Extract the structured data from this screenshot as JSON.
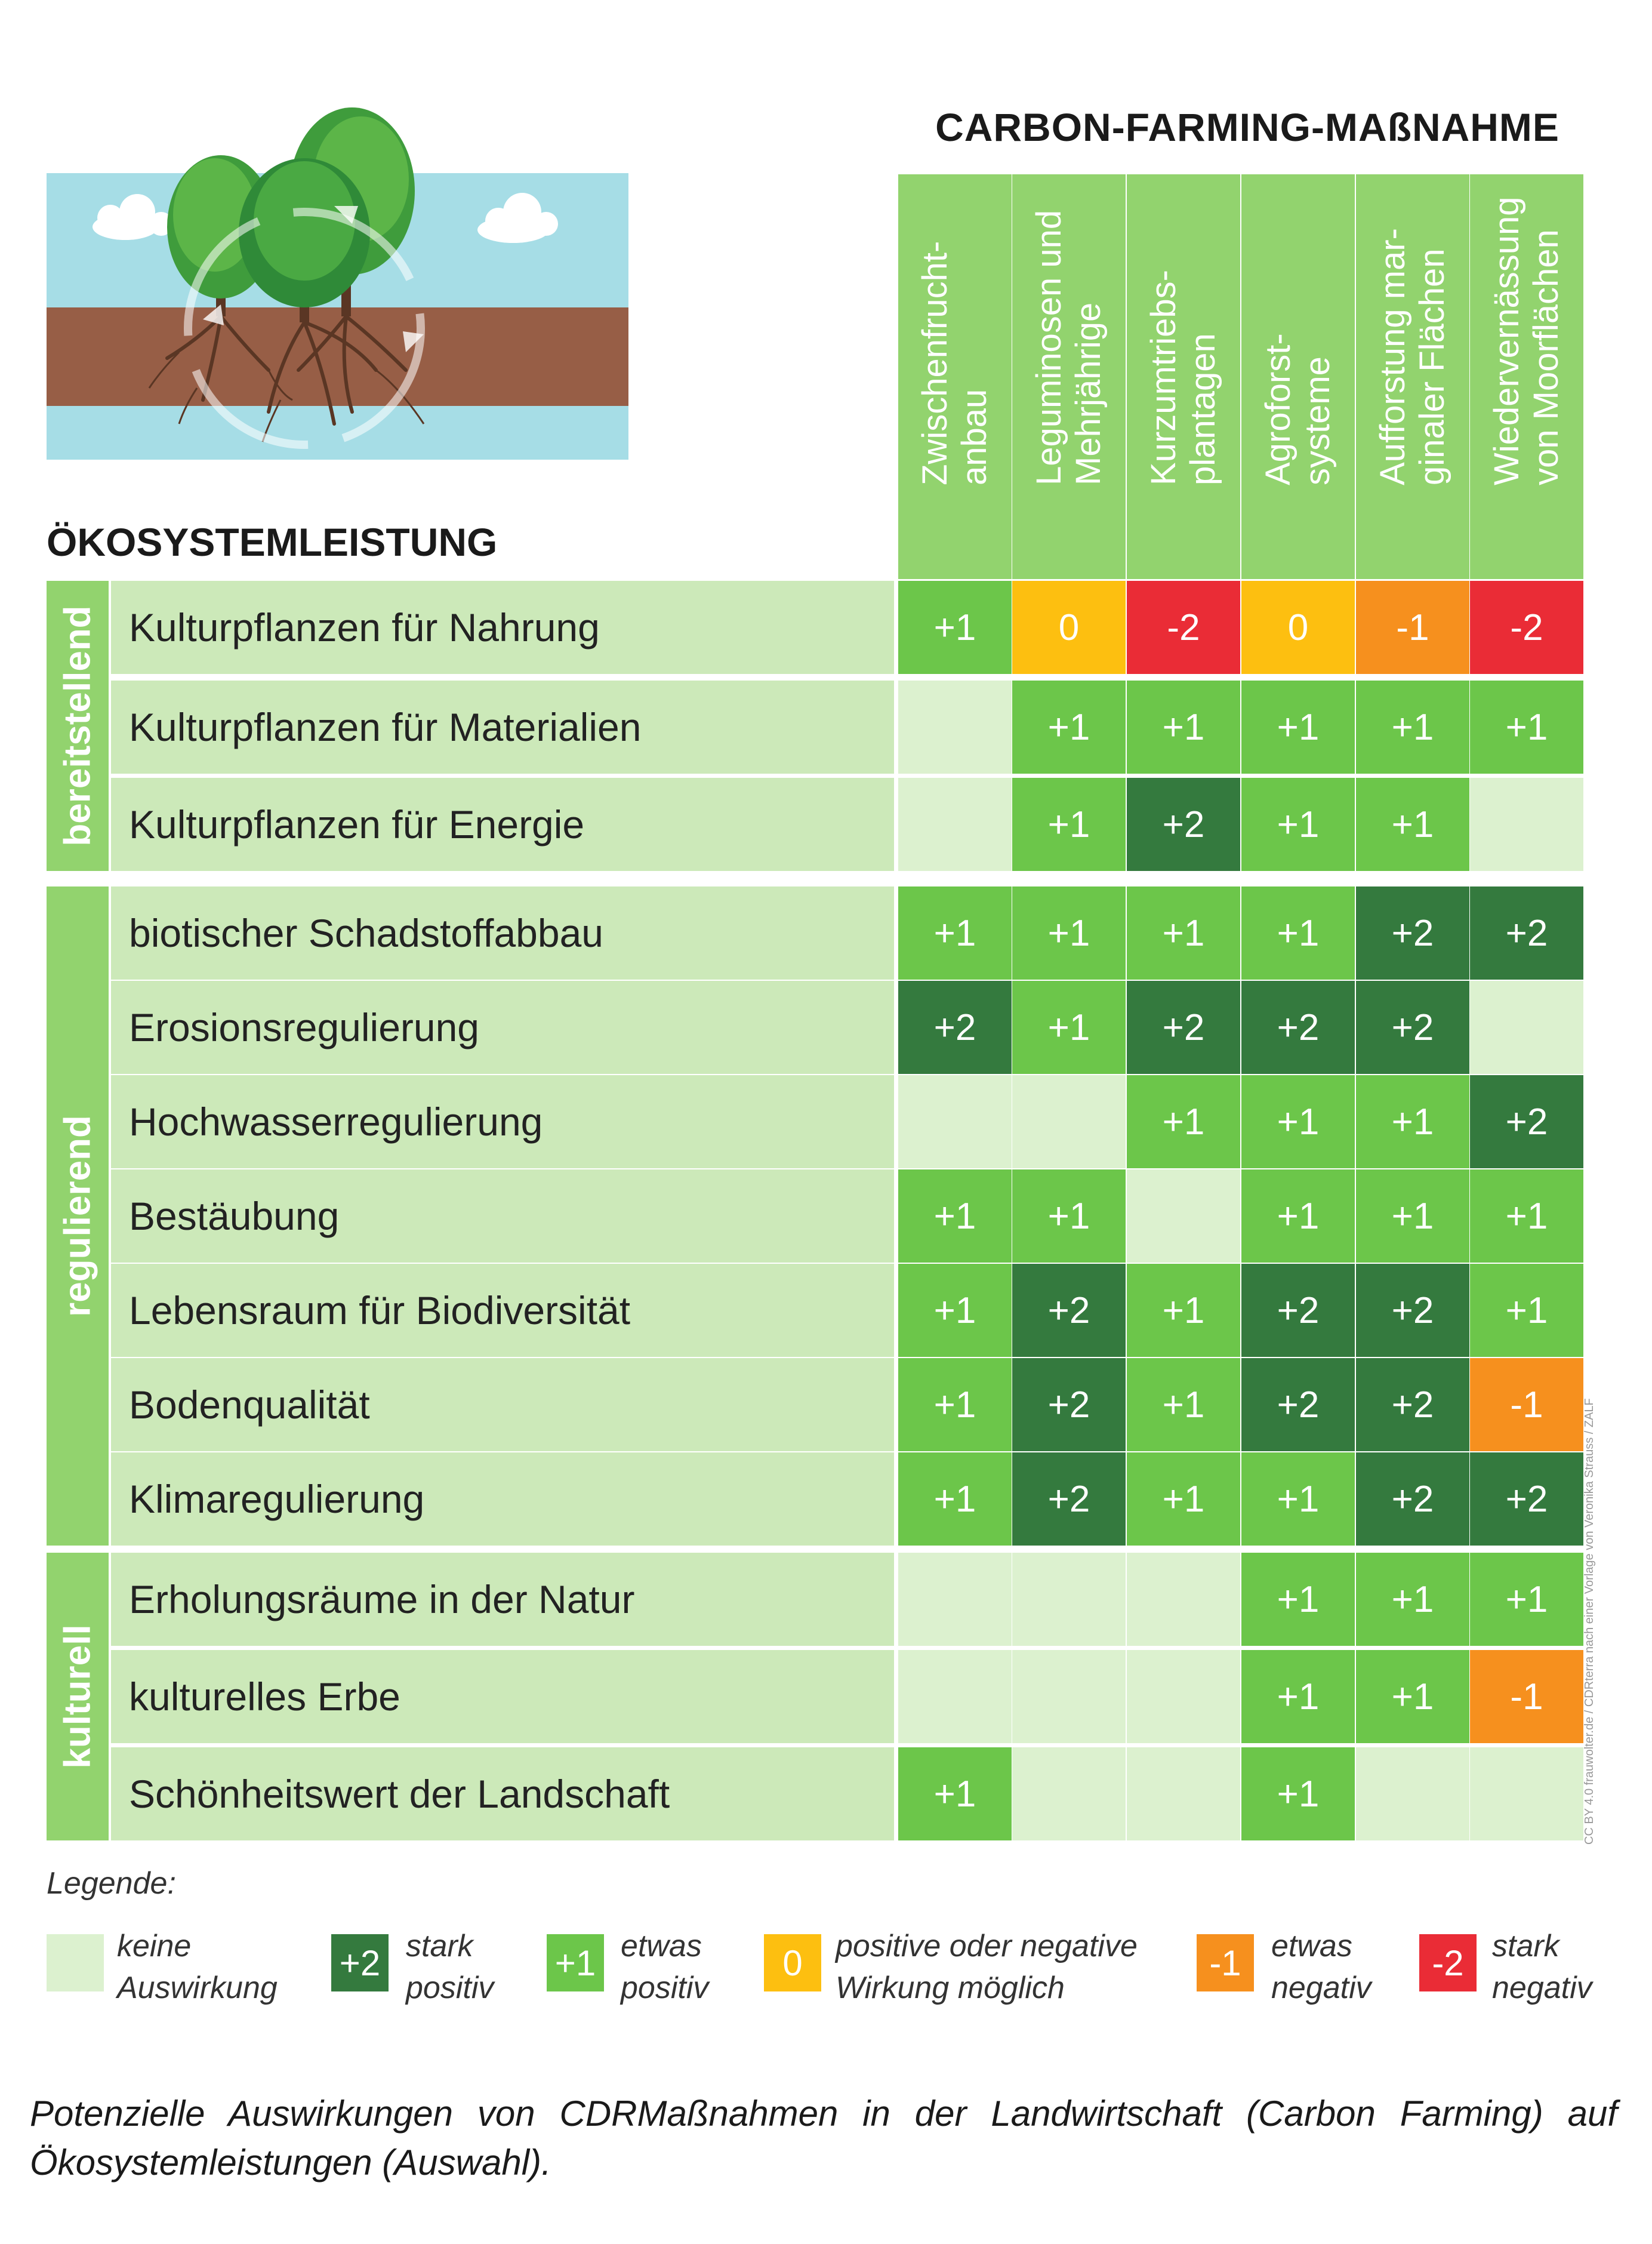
{
  "colors": {
    "none": "#dcf1cf",
    "stark_positiv": "#347a3e",
    "etwas_positiv": "#6cc64a",
    "neutral": "#fdbf10",
    "etwas_negativ": "#f6901e",
    "stark_negativ": "#ea2c36",
    "header_green": "#92d36e",
    "label_green": "#cce9b9"
  },
  "header": {
    "main_title": "CARBON-FARMING-MAßNAHME",
    "eco_title": "ÖKOSYSTEMLEISTUNG"
  },
  "chart_data": {
    "type": "table",
    "columns": [
      {
        "line1": "Zwischenfrucht-",
        "line2": "anbau"
      },
      {
        "line1": "Leguminosen und",
        "line2": "Mehrjährige"
      },
      {
        "line1": "Kurzumtriebs-",
        "line2": "plantagen"
      },
      {
        "line1": "Agroforst-",
        "line2": "systeme"
      },
      {
        "line1": "Aufforstung mar-",
        "line2": "ginaler Flächen"
      },
      {
        "line1": "Wiedervernässung",
        "line2": "von Moorflächen"
      }
    ],
    "groups": [
      {
        "name": "bereitstellend",
        "rows": [
          {
            "label": "Kulturpflanzen für Nahrung",
            "values": [
              1,
              0,
              -2,
              0,
              -1,
              -2
            ]
          },
          {
            "label": "Kulturpflanzen für Materialien",
            "values": [
              null,
              1,
              1,
              1,
              1,
              1
            ]
          },
          {
            "label": "Kulturpflanzen für Energie",
            "values": [
              null,
              1,
              2,
              1,
              1,
              null
            ]
          }
        ]
      },
      {
        "name": "regulierend",
        "rows": [
          {
            "label": "biotischer Schadstoffabbau",
            "values": [
              1,
              1,
              1,
              1,
              2,
              2
            ]
          },
          {
            "label": "Erosionsregulierung",
            "values": [
              2,
              1,
              2,
              2,
              2,
              null
            ]
          },
          {
            "label": "Hochwasserregulierung",
            "values": [
              null,
              null,
              1,
              1,
              1,
              2
            ]
          },
          {
            "label": "Bestäubung",
            "values": [
              1,
              1,
              null,
              1,
              1,
              1
            ]
          },
          {
            "label": "Lebensraum für Biodiversität",
            "values": [
              1,
              2,
              1,
              2,
              2,
              1
            ]
          },
          {
            "label": "Bodenqualität",
            "values": [
              1,
              2,
              1,
              2,
              2,
              -1
            ]
          },
          {
            "label": "Klimaregulierung",
            "values": [
              1,
              2,
              1,
              1,
              2,
              2
            ]
          }
        ]
      },
      {
        "name": "kulturell",
        "rows": [
          {
            "label": "Erholungsräume in der Natur",
            "values": [
              null,
              null,
              null,
              1,
              1,
              1
            ]
          },
          {
            "label": "kulturelles Erbe",
            "values": [
              null,
              null,
              null,
              1,
              1,
              -1
            ]
          },
          {
            "label": "Schönheitswert der Landschaft",
            "values": [
              1,
              null,
              null,
              1,
              null,
              null
            ]
          }
        ]
      }
    ]
  },
  "legend": {
    "title": "Legende:",
    "items": [
      {
        "symbol": "",
        "line1": "keine",
        "line2": "Auswirkung",
        "color": "#dcf1cf"
      },
      {
        "symbol": "+2",
        "line1": "stark",
        "line2": "positiv",
        "color": "#347a3e"
      },
      {
        "symbol": "+1",
        "line1": "etwas",
        "line2": "positiv",
        "color": "#6cc64a"
      },
      {
        "symbol": "0",
        "line1": "positive oder negative",
        "line2": "Wirkung möglich",
        "color": "#fdbf10"
      },
      {
        "symbol": "-1",
        "line1": "etwas",
        "line2": "negativ",
        "color": "#f6901e"
      },
      {
        "symbol": "-2",
        "line1": "stark",
        "line2": "negativ",
        "color": "#ea2c36"
      }
    ]
  },
  "caption": "Potenzielle Auswirkungen von CDRMaßnahmen in der Landwirtschaft (Carbon Farming) auf Ökosystemleistungen (Auswahl).",
  "credit": "CC BY 4.0 frauwolter.de / CDRterra nach einer Vorlage von Veronika Strauss / ZALF"
}
